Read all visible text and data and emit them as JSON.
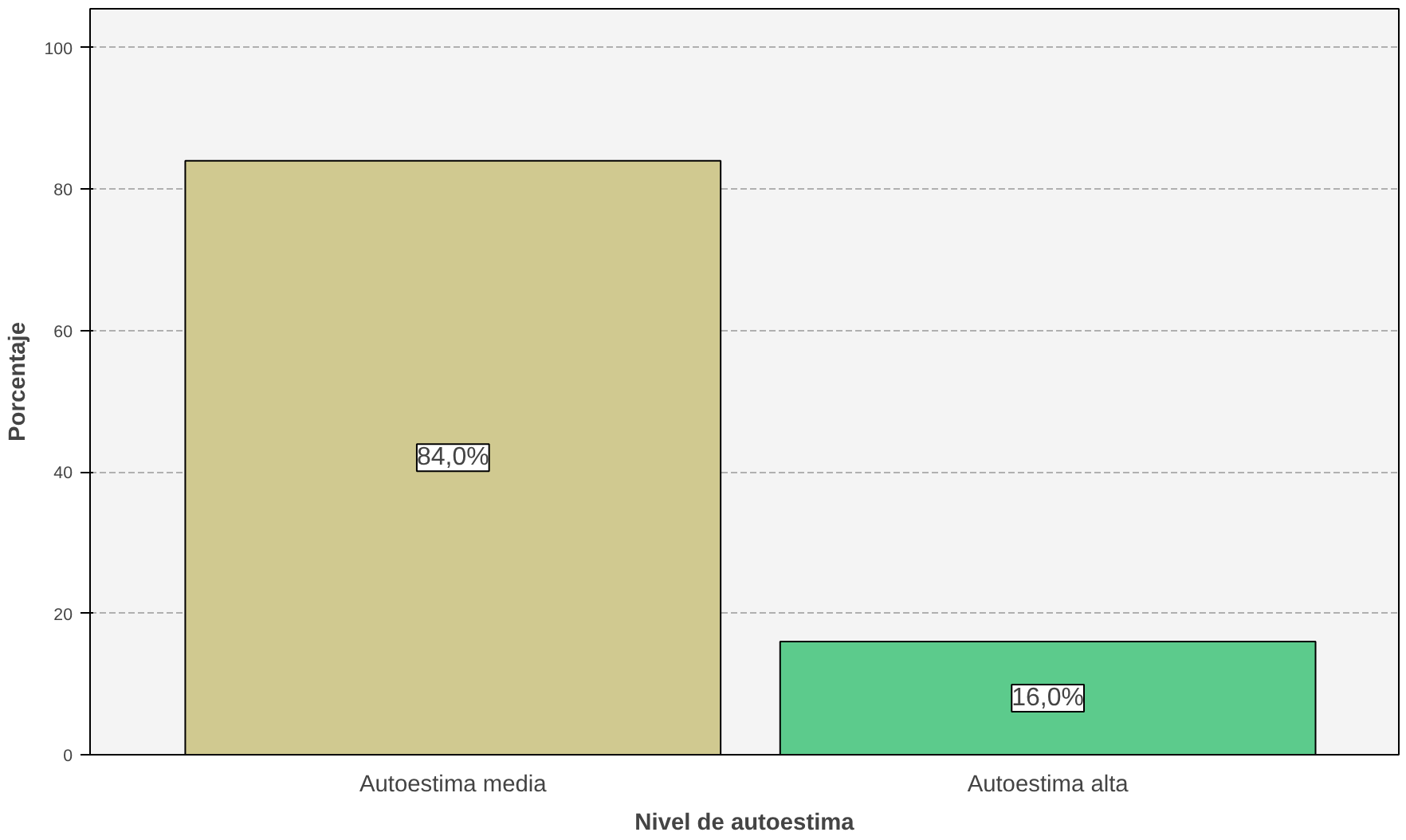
{
  "chart_data": {
    "type": "bar",
    "xlabel": "Nivel de autoestima",
    "ylabel": "Porcentaje",
    "categories": [
      "Autoestima media",
      "Autoestima alta"
    ],
    "values": [
      84,
      16
    ],
    "colors": [
      "#d0c990",
      "#5ccb8c"
    ],
    "value_labels": [
      "84,0%",
      "16,0%"
    ],
    "ylim": [
      0,
      105.5
    ],
    "yticks": [
      0,
      20,
      40,
      60,
      80,
      100
    ],
    "grid": "y"
  }
}
